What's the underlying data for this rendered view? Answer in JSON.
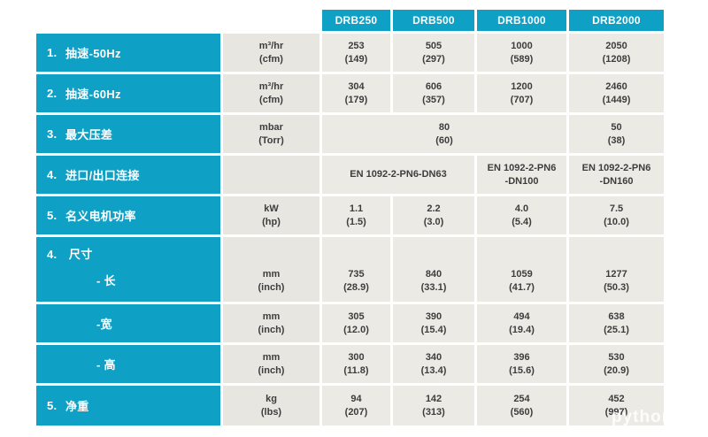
{
  "header": {
    "models": [
      "DRB250",
      "DRB500",
      "DRB1000",
      "DRB2000"
    ]
  },
  "rows": [
    {
      "num": "1.",
      "label": "抽速-50Hz",
      "unit": [
        "m³/hr",
        "(cfm)"
      ],
      "cells": [
        [
          "253",
          "(149)"
        ],
        [
          "505",
          "(297)"
        ],
        [
          "1000",
          "(589)"
        ],
        [
          "2050",
          "(1208)"
        ]
      ]
    },
    {
      "num": "2.",
      "label": "抽速-60Hz",
      "unit": [
        "m³/hr",
        "(cfm)"
      ],
      "cells": [
        [
          "304",
          "(179)"
        ],
        [
          "606",
          "(357)"
        ],
        [
          "1200",
          "(707)"
        ],
        [
          "2460",
          "(1449)"
        ]
      ]
    },
    {
      "num": "3.",
      "label": "最大压差",
      "unit": [
        "mbar",
        "(Torr)"
      ],
      "merged_value": [
        "80",
        "(60)"
      ],
      "last_value": [
        "50",
        "(38)"
      ]
    },
    {
      "num": "4.",
      "label": "进口/出口连接",
      "unit": [
        "",
        ""
      ],
      "merged_value": [
        "EN 1092-2-PN6-DN63"
      ],
      "value_drb1000": [
        "EN 1092-2-PN6",
        "-DN100"
      ],
      "value_drb2000": [
        "EN 1092-2-PN6",
        "-DN160"
      ]
    },
    {
      "num": "5.",
      "label": "名义电机功率",
      "unit": [
        "kW",
        "(hp)"
      ],
      "cells": [
        [
          "1.1",
          "(1.5)"
        ],
        [
          "2.2",
          "(3.0)"
        ],
        [
          "4.0",
          "(5.4)"
        ],
        [
          "7.5",
          "(10.0)"
        ]
      ]
    },
    {
      "num": "4.",
      "label": "尺寸",
      "sub": "- 长",
      "unit": [
        "mm",
        "(inch)"
      ],
      "cells": [
        [
          "735",
          "(28.9)"
        ],
        [
          "840",
          "(33.1)"
        ],
        [
          "1059",
          "(41.7)"
        ],
        [
          "1277",
          "(50.3)"
        ]
      ]
    },
    {
      "sub": "-宽",
      "unit": [
        "mm",
        "(inch)"
      ],
      "cells": [
        [
          "305",
          "(12.0)"
        ],
        [
          "390",
          "(15.4)"
        ],
        [
          "494",
          "(19.4)"
        ],
        [
          "638",
          "(25.1)"
        ]
      ]
    },
    {
      "sub": "- 高",
      "unit": [
        "mm",
        "(inch)"
      ],
      "cells": [
        [
          "300",
          "(11.8)"
        ],
        [
          "340",
          "(13.4)"
        ],
        [
          "396",
          "(15.6)"
        ],
        [
          "530",
          "(20.9)"
        ]
      ]
    },
    {
      "num": "5.",
      "label": "净重",
      "unit": [
        "kg",
        "(lbs)"
      ],
      "cells": [
        [
          "94",
          "(207)"
        ],
        [
          "142",
          "(313)"
        ],
        [
          "254",
          "(560)"
        ],
        [
          "452",
          "(997)"
        ]
      ]
    }
  ],
  "watermark": {
    "text": "python"
  },
  "colors": {
    "accent_teal": "#0fa0c6",
    "unit_cell_gray": "#e7e6e1",
    "value_cell_gray": "#ebeae5",
    "value_text": "#3d3d3d",
    "header_text": "#ffffff"
  }
}
